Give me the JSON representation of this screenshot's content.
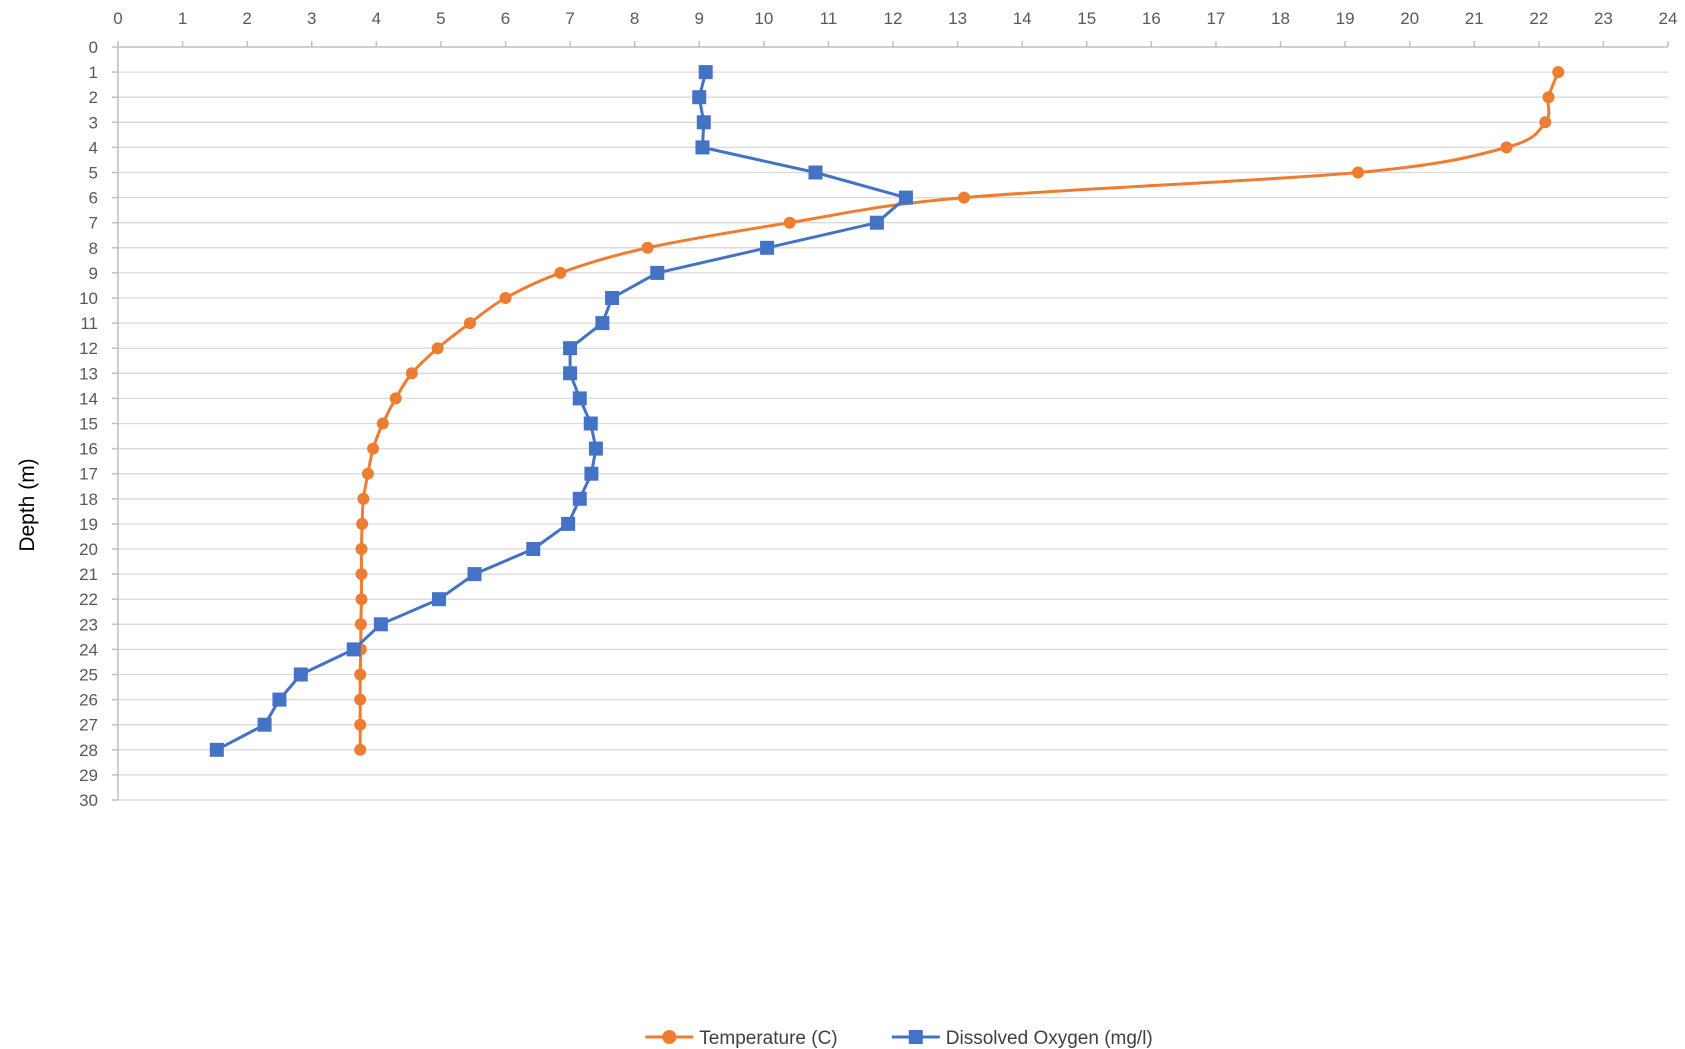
{
  "chart_data": {
    "type": "line",
    "title": "",
    "xlabel": "",
    "ylabel": "Depth (m)",
    "xlim": [
      0,
      24
    ],
    "ylim": [
      0,
      30
    ],
    "y_inverted": true,
    "x_axis_position": "top",
    "x_ticks": [
      0,
      1,
      2,
      3,
      4,
      5,
      6,
      7,
      8,
      9,
      10,
      11,
      12,
      13,
      14,
      15,
      16,
      17,
      18,
      19,
      20,
      21,
      22,
      23,
      24
    ],
    "y_ticks": [
      0,
      1,
      2,
      3,
      4,
      5,
      6,
      7,
      8,
      9,
      10,
      11,
      12,
      13,
      14,
      15,
      16,
      17,
      18,
      19,
      20,
      21,
      22,
      23,
      24,
      25,
      26,
      27,
      28,
      29,
      30
    ],
    "grid": "horizontal",
    "legend_position": "bottom",
    "series": [
      {
        "name": "Temperature (C)",
        "color": "#ED7D31",
        "marker": "circle",
        "smooth": true,
        "points": [
          [
            22.3,
            1
          ],
          [
            22.15,
            2
          ],
          [
            22.1,
            3
          ],
          [
            21.5,
            4
          ],
          [
            19.2,
            5
          ],
          [
            13.1,
            6
          ],
          [
            10.4,
            7
          ],
          [
            8.2,
            8
          ],
          [
            6.85,
            9
          ],
          [
            6.0,
            10
          ],
          [
            5.45,
            11
          ],
          [
            4.95,
            12
          ],
          [
            4.55,
            13
          ],
          [
            4.3,
            14
          ],
          [
            4.1,
            15
          ],
          [
            3.95,
            16
          ],
          [
            3.87,
            17
          ],
          [
            3.8,
            18
          ],
          [
            3.78,
            19
          ],
          [
            3.77,
            20
          ],
          [
            3.77,
            21
          ],
          [
            3.77,
            22
          ],
          [
            3.76,
            23
          ],
          [
            3.76,
            24
          ],
          [
            3.75,
            25
          ],
          [
            3.75,
            26
          ],
          [
            3.75,
            27
          ],
          [
            3.75,
            28
          ]
        ]
      },
      {
        "name": "Dissolved Oxygen (mg/l)",
        "color": "#4472C4",
        "marker": "square",
        "smooth": false,
        "points": [
          [
            9.1,
            1
          ],
          [
            9.0,
            2
          ],
          [
            9.07,
            3
          ],
          [
            9.05,
            4
          ],
          [
            10.8,
            5
          ],
          [
            12.2,
            6
          ],
          [
            11.75,
            7
          ],
          [
            10.05,
            8
          ],
          [
            8.35,
            9
          ],
          [
            7.65,
            10
          ],
          [
            7.5,
            11
          ],
          [
            7.0,
            12
          ],
          [
            7.0,
            13
          ],
          [
            7.15,
            14
          ],
          [
            7.32,
            15
          ],
          [
            7.4,
            16
          ],
          [
            7.33,
            17
          ],
          [
            7.15,
            18
          ],
          [
            6.97,
            19
          ],
          [
            6.43,
            20
          ],
          [
            5.52,
            21
          ],
          [
            4.97,
            22
          ],
          [
            4.07,
            23
          ],
          [
            3.65,
            24
          ],
          [
            2.83,
            25
          ],
          [
            2.5,
            26
          ],
          [
            2.27,
            27
          ],
          [
            1.53,
            28
          ]
        ]
      }
    ]
  }
}
